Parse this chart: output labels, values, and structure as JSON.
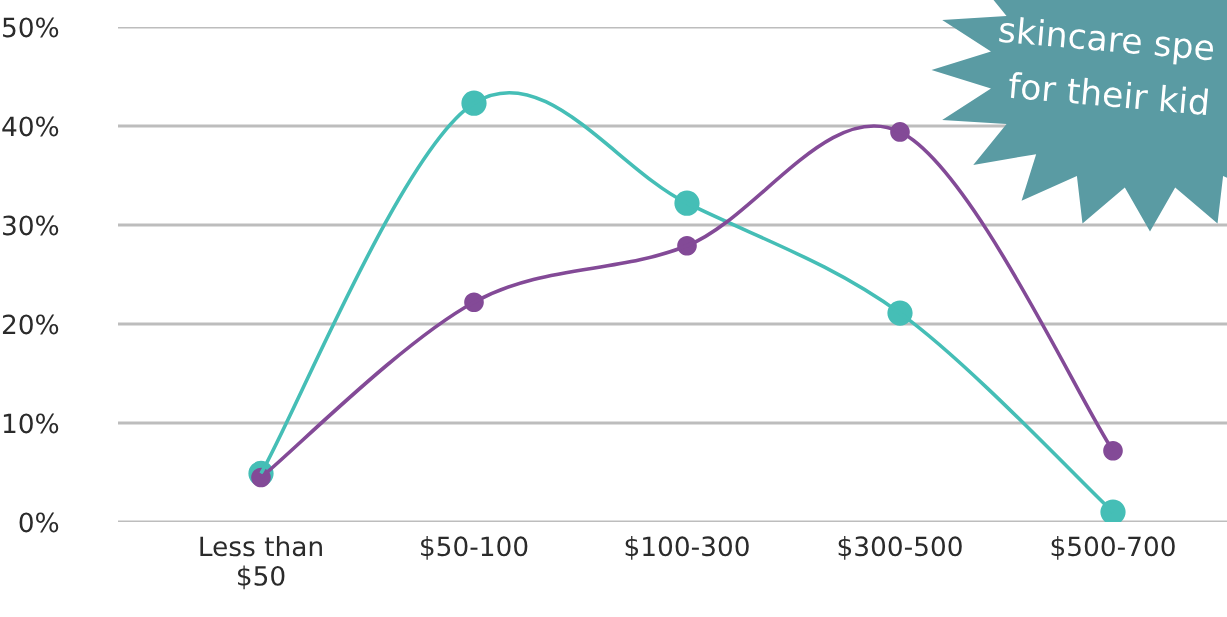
{
  "chart_data": {
    "type": "line",
    "categories": [
      "Less than\n$50",
      "$50-100",
      "$100-300",
      "$300-500",
      "$500-700"
    ],
    "series": [
      {
        "color": "#45beb6",
        "values": [
          4.9,
          42.3,
          32.2,
          21.1,
          1.0
        ]
      },
      {
        "color": "#834a97",
        "values": [
          4.5,
          22.2,
          27.9,
          39.4,
          7.2
        ]
      }
    ],
    "ylim": [
      0,
      50
    ],
    "yticks": [
      {
        "value": 0,
        "label": "0%"
      },
      {
        "value": 10,
        "label": "10%"
      },
      {
        "value": 20,
        "label": "20%"
      },
      {
        "value": 30,
        "label": "30%"
      },
      {
        "value": 40,
        "label": "40%"
      },
      {
        "value": 50,
        "label": "50%"
      }
    ],
    "grid": "y",
    "marker": "circle",
    "line_style": "solid",
    "annotations": [
      "skincare spe",
      "for their kid"
    ]
  }
}
